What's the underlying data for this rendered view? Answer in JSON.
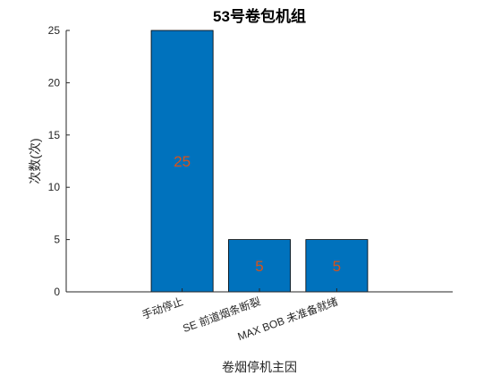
{
  "chart_data": {
    "type": "bar",
    "title": "53号卷包机组",
    "xlabel": "卷烟停机主因",
    "ylabel": "次数(次)",
    "categories": [
      "手动停止",
      "SE 前道烟条断裂",
      "MAX BOB 未准备就绪"
    ],
    "values": [
      25,
      5,
      5
    ],
    "data_labels": [
      "25",
      "5",
      "5"
    ],
    "ylim": [
      0,
      25
    ],
    "yticks": [
      0,
      5,
      10,
      15,
      20,
      25
    ],
    "ytick_labels": [
      "0",
      "5",
      "10",
      "15",
      "20",
      "25"
    ],
    "grid": false,
    "legend": "none",
    "bar_color": "#0072BD",
    "label_color": "#D95319"
  }
}
